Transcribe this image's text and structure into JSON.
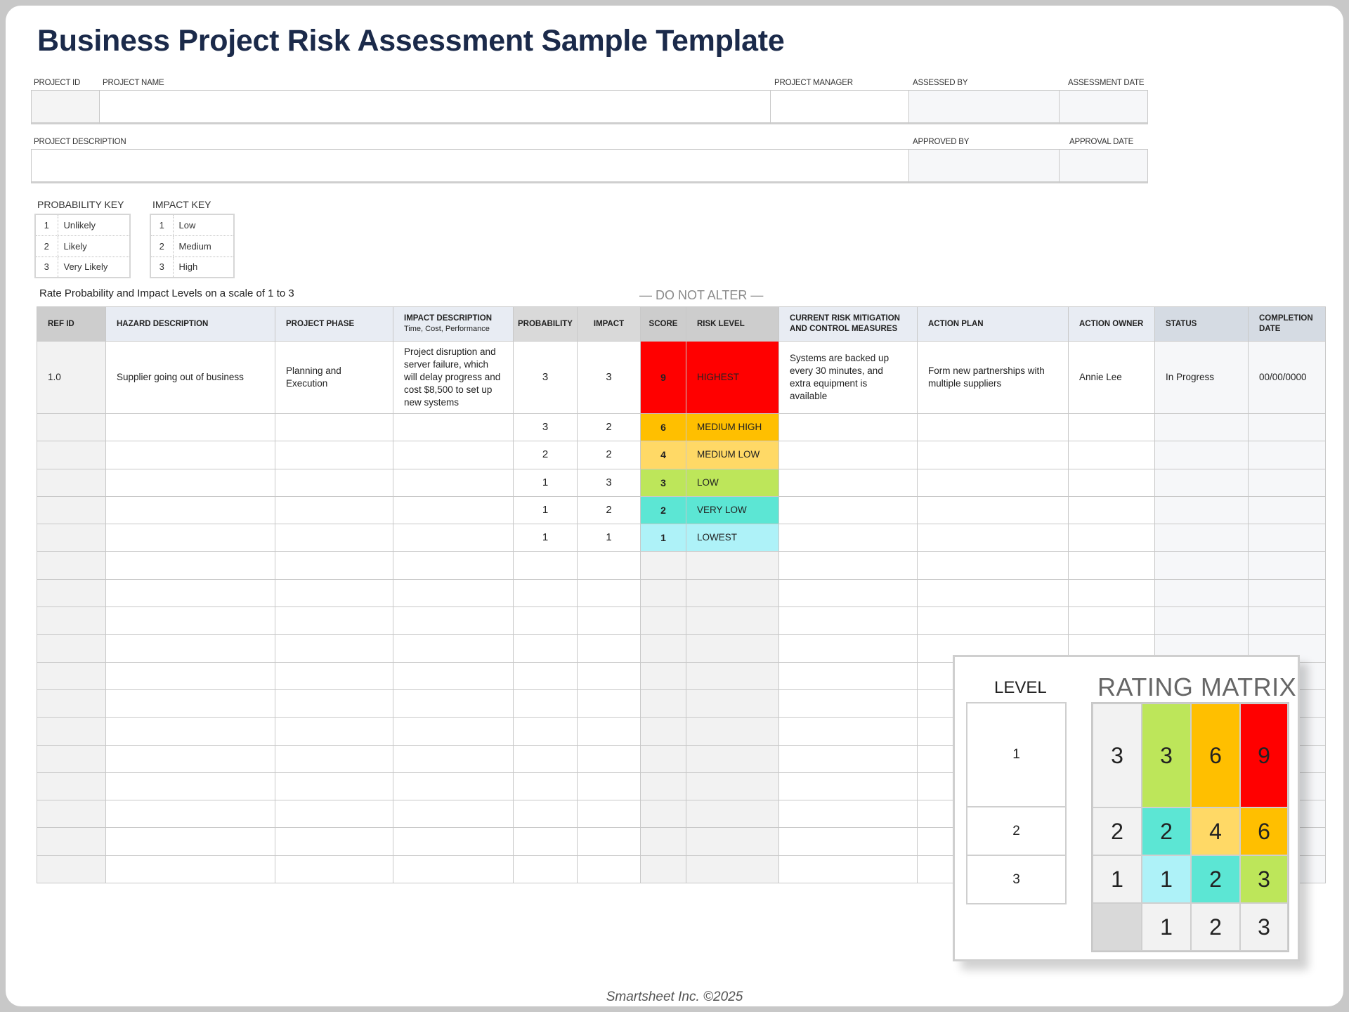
{
  "title": "Business Project Risk Assessment Sample Template",
  "header_fields": {
    "project_id": {
      "label": "PROJECT ID",
      "value": ""
    },
    "project_name": {
      "label": "PROJECT NAME",
      "value": ""
    },
    "project_manager": {
      "label": "PROJECT MANAGER",
      "value": ""
    },
    "assessed_by": {
      "label": "ASSESSED BY",
      "value": ""
    },
    "assessment_date": {
      "label": "ASSESSMENT DATE",
      "value": ""
    },
    "project_description": {
      "label": "PROJECT DESCRIPTION",
      "value": ""
    },
    "approved_by": {
      "label": "APPROVED BY",
      "value": ""
    },
    "approval_date": {
      "label": "APPROVAL DATE",
      "value": ""
    }
  },
  "probability_key": {
    "title": "PROBABILITY KEY",
    "items": [
      {
        "n": "1",
        "label": "Unlikely"
      },
      {
        "n": "2",
        "label": "Likely"
      },
      {
        "n": "3",
        "label": "Very Likely"
      }
    ]
  },
  "impact_key": {
    "title": "IMPACT KEY",
    "items": [
      {
        "n": "1",
        "label": "Low"
      },
      {
        "n": "2",
        "label": "Medium"
      },
      {
        "n": "3",
        "label": "High"
      }
    ]
  },
  "note": "Rate Probability and Impact Levels on a scale of 1 to 3",
  "do_not_alter": "— DO NOT ALTER —",
  "table": {
    "columns": [
      {
        "label": "REF ID"
      },
      {
        "label": "HAZARD DESCRIPTION"
      },
      {
        "label": "PROJECT PHASE"
      },
      {
        "label": "IMPACT DESCRIPTION",
        "sub": "Time, Cost, Performance"
      },
      {
        "label": "PROBABILITY"
      },
      {
        "label": "IMPACT"
      },
      {
        "label": "SCORE"
      },
      {
        "label": "RISK LEVEL"
      },
      {
        "label": "CURRENT RISK MITIGATION AND CONTROL MEASURES"
      },
      {
        "label": "ACTION PLAN"
      },
      {
        "label": "ACTION OWNER"
      },
      {
        "label": "STATUS"
      },
      {
        "label": "COMPLETION DATE"
      }
    ],
    "rows": [
      {
        "ref": "1.0",
        "hazard": "Supplier going out of business",
        "phase": "Planning and Execution",
        "impact_desc": "Project disruption and server failure, which will delay progress and cost $8,500 to set up new systems",
        "probability": "3",
        "impact": "3",
        "score": "9",
        "level": "HIGHEST",
        "color": "#ff0000",
        "mitigation": "Systems are backed up every 30 minutes, and extra equipment is available",
        "action_plan": "Form new partnerships with multiple suppliers",
        "owner": "Annie Lee",
        "status": "In Progress",
        "date": "00/00/0000"
      },
      {
        "ref": "",
        "hazard": "",
        "phase": "",
        "impact_desc": "",
        "probability": "3",
        "impact": "2",
        "score": "6",
        "level": "MEDIUM HIGH",
        "color": "#ffbf00",
        "mitigation": "",
        "action_plan": "",
        "owner": "",
        "status": "",
        "date": ""
      },
      {
        "ref": "",
        "hazard": "",
        "phase": "",
        "impact_desc": "",
        "probability": "2",
        "impact": "2",
        "score": "4",
        "level": "MEDIUM LOW",
        "color": "#ffd966",
        "mitigation": "",
        "action_plan": "",
        "owner": "",
        "status": "",
        "date": ""
      },
      {
        "ref": "",
        "hazard": "",
        "phase": "",
        "impact_desc": "",
        "probability": "1",
        "impact": "3",
        "score": "3",
        "level": "LOW",
        "color": "#bde65a",
        "mitigation": "",
        "action_plan": "",
        "owner": "",
        "status": "",
        "date": ""
      },
      {
        "ref": "",
        "hazard": "",
        "phase": "",
        "impact_desc": "",
        "probability": "1",
        "impact": "2",
        "score": "2",
        "level": "VERY LOW",
        "color": "#5ce6d4",
        "mitigation": "",
        "action_plan": "",
        "owner": "",
        "status": "",
        "date": ""
      },
      {
        "ref": "",
        "hazard": "",
        "phase": "",
        "impact_desc": "",
        "probability": "1",
        "impact": "1",
        "score": "1",
        "level": "LOWEST",
        "color": "#aef2f8",
        "mitigation": "",
        "action_plan": "",
        "owner": "",
        "status": "",
        "date": ""
      },
      {},
      {},
      {},
      {},
      {},
      {},
      {},
      {},
      {},
      {},
      {},
      {}
    ]
  },
  "rating_matrix": {
    "level_title": "LEVEL",
    "levels": [
      "1",
      "2",
      "3"
    ],
    "title": "RATING MATRIX",
    "cells": [
      [
        {
          "v": "3",
          "c": "#f2f2f2"
        },
        {
          "v": "3",
          "c": "#bde65a"
        },
        {
          "v": "6",
          "c": "#ffbf00"
        },
        {
          "v": "9",
          "c": "#ff0000"
        }
      ],
      [
        {
          "v": "2",
          "c": "#f2f2f2"
        },
        {
          "v": "2",
          "c": "#5ce6d4"
        },
        {
          "v": "4",
          "c": "#ffd966"
        },
        {
          "v": "6",
          "c": "#ffbf00"
        }
      ],
      [
        {
          "v": "1",
          "c": "#f2f2f2"
        },
        {
          "v": "1",
          "c": "#aef2f8"
        },
        {
          "v": "2",
          "c": "#5ce6d4"
        },
        {
          "v": "3",
          "c": "#bde65a"
        }
      ],
      [
        {
          "v": "",
          "c": "#d9d9d9"
        },
        {
          "v": "1",
          "c": "#f2f2f2"
        },
        {
          "v": "2",
          "c": "#f2f2f2"
        },
        {
          "v": "3",
          "c": "#f2f2f2"
        }
      ]
    ]
  },
  "footer": "Smartsheet Inc. ©2025"
}
